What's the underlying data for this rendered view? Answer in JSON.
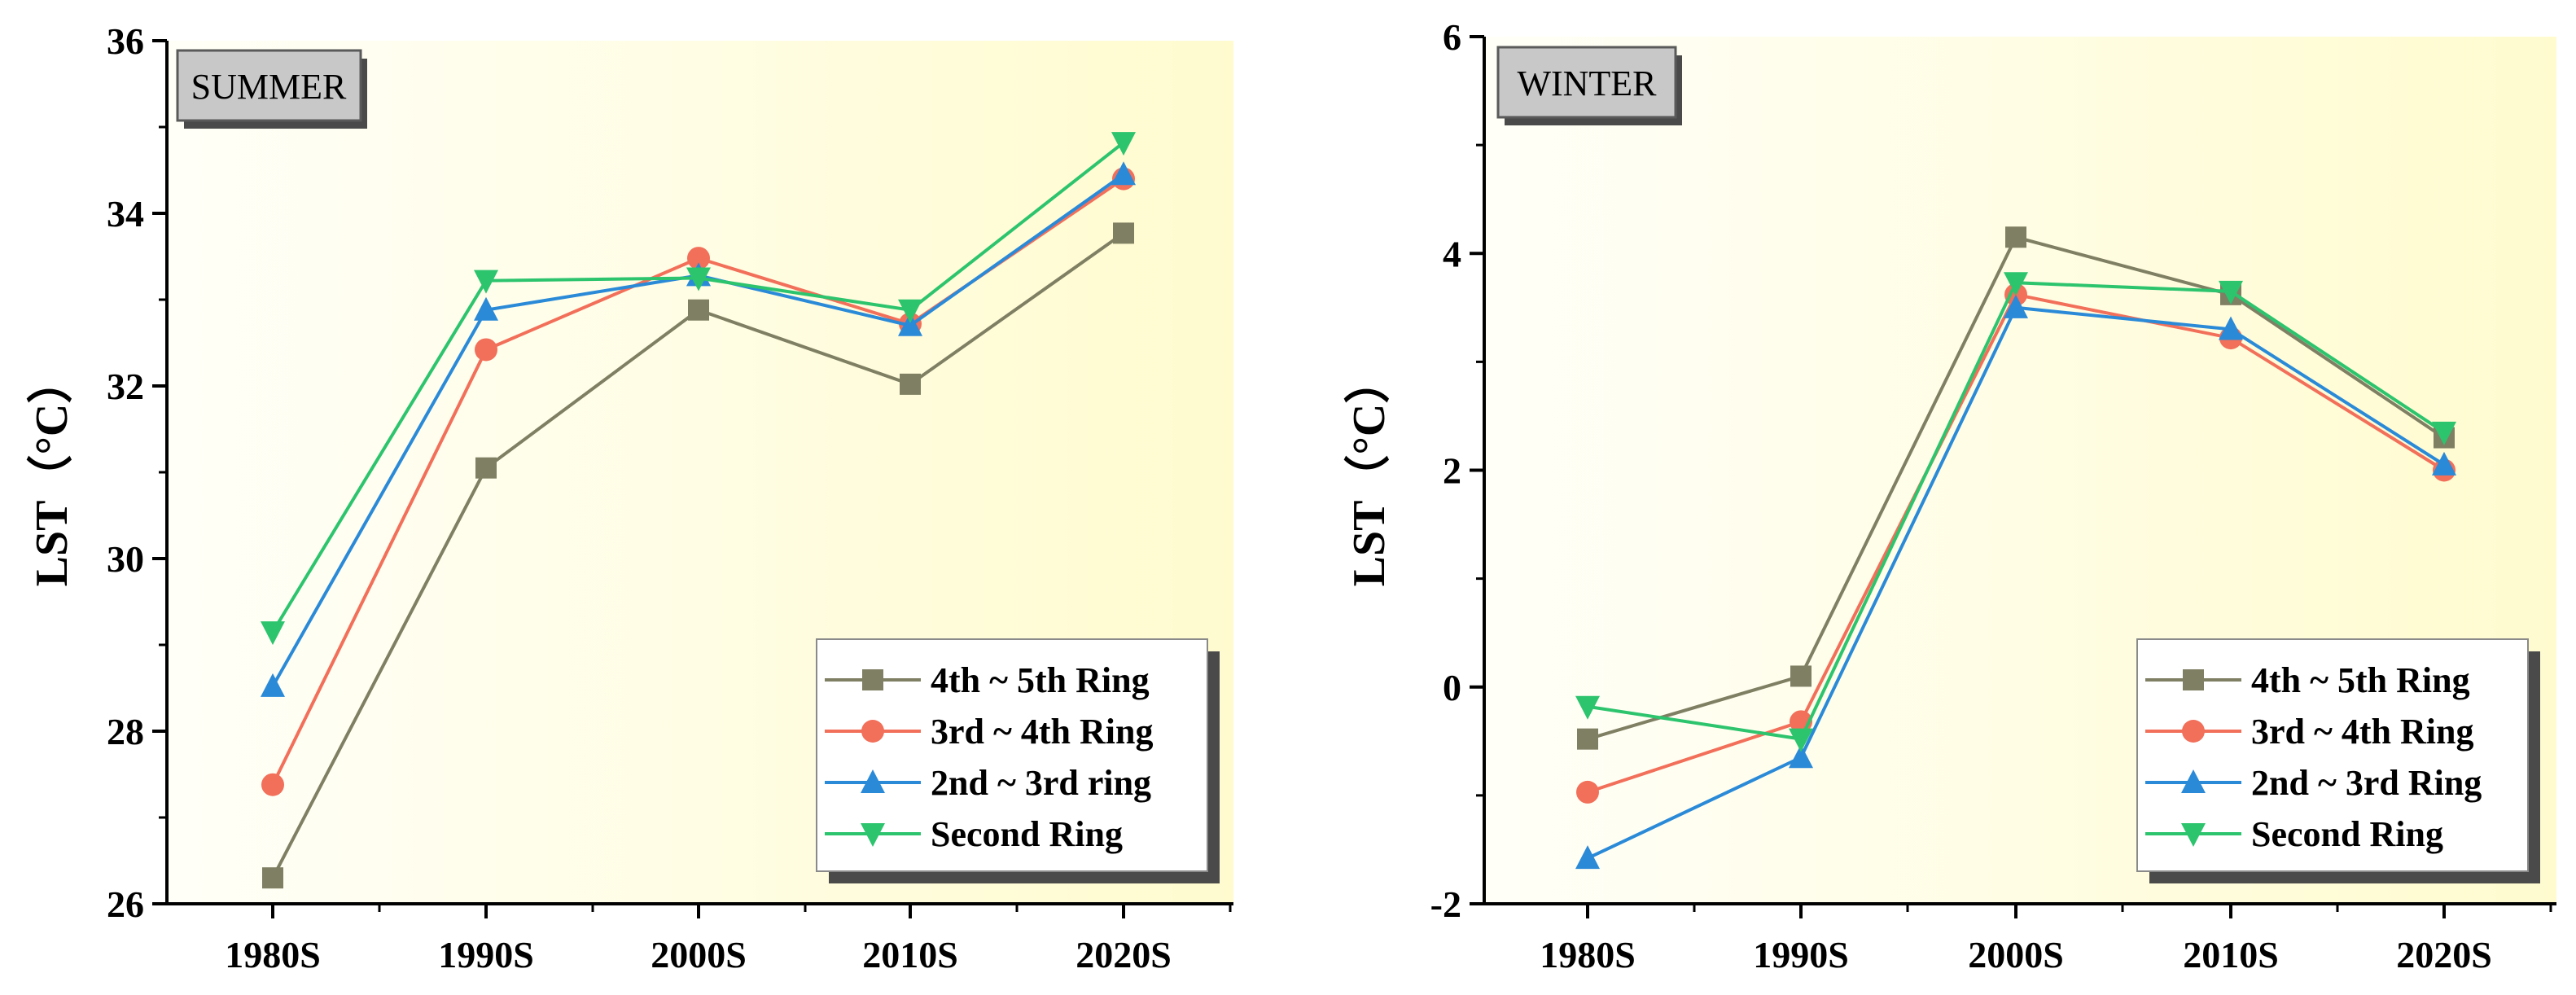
{
  "chart_data": [
    {
      "type": "line",
      "title": "SUMMER",
      "xlabel": "",
      "ylabel": "LST（°C）",
      "categories": [
        "1980S",
        "1990S",
        "2000S",
        "2010S",
        "2020S"
      ],
      "ylim": [
        26,
        36
      ],
      "yticks": [
        26,
        28,
        30,
        32,
        34,
        36
      ],
      "legend_position": "bottom-right",
      "series": [
        {
          "name": "4th ~ 5th Ring",
          "marker": "square",
          "color": "#7f7f63",
          "values": [
            26.3,
            31.05,
            32.88,
            32.02,
            33.77
          ]
        },
        {
          "name": "3rd ~ 4th Ring",
          "marker": "circle",
          "color": "#f26f5a",
          "values": [
            27.38,
            32.42,
            33.48,
            32.72,
            34.4
          ]
        },
        {
          "name": "2nd ~ 3rd ring",
          "marker": "triangle-up",
          "color": "#2a8ad8",
          "values": [
            28.52,
            32.88,
            33.28,
            32.7,
            34.45
          ]
        },
        {
          "name": "Second Ring",
          "marker": "triangle-down",
          "color": "#2dc46e",
          "values": [
            29.15,
            33.22,
            33.25,
            32.88,
            34.82
          ]
        }
      ]
    },
    {
      "type": "line",
      "title": "WINTER",
      "xlabel": "",
      "ylabel": "LST（°C）",
      "categories": [
        "1980S",
        "1990S",
        "2000S",
        "2010S",
        "2020S"
      ],
      "ylim": [
        -2,
        6
      ],
      "yticks": [
        -2,
        0,
        2,
        4,
        6
      ],
      "legend_position": "bottom-right",
      "series": [
        {
          "name": "4th ~ 5th Ring",
          "marker": "square",
          "color": "#7f7f63",
          "values": [
            -0.48,
            0.1,
            4.15,
            3.62,
            2.3
          ]
        },
        {
          "name": "3rd ~ 4th Ring",
          "marker": "circle",
          "color": "#f26f5a",
          "values": [
            -0.97,
            -0.32,
            3.62,
            3.22,
            2.0
          ]
        },
        {
          "name": "2nd ~ 3rd Ring",
          "marker": "triangle-up",
          "color": "#2a8ad8",
          "values": [
            -1.58,
            -0.65,
            3.5,
            3.3,
            2.05
          ]
        },
        {
          "name": "Second Ring",
          "marker": "triangle-down",
          "color": "#2dc46e",
          "values": [
            -0.18,
            -0.48,
            3.73,
            3.65,
            2.35
          ]
        }
      ]
    }
  ]
}
